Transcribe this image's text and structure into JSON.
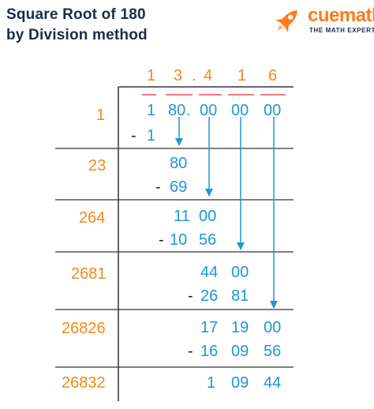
{
  "title": {
    "line1": "Square Root of 180",
    "line2": "by Division method"
  },
  "logo": {
    "brand": "cuemath",
    "tagline": "THE MATH EXPERT",
    "icon": "rocket-icon",
    "color": "#ff7a1a"
  },
  "colors": {
    "divisor": "#f08a17",
    "quotient": "#f08a17",
    "working": "#1d97d6",
    "subtraction_sign": "#222222",
    "bar_red": "#e8505b",
    "grid": "#333333"
  },
  "quotient": [
    "1",
    "3",
    ".",
    "4",
    "1",
    "6"
  ],
  "dividend": {
    "groups": [
      "1",
      "80",
      ".",
      "00",
      "00",
      "00"
    ]
  },
  "rows": [
    {
      "divisor": "1",
      "lines": [
        {
          "sign": "",
          "value": "1 80.00 00 00"
        },
        {
          "sign": "-",
          "value": "1"
        }
      ]
    },
    {
      "divisor": "23",
      "lines": [
        {
          "sign": "",
          "value": "80"
        },
        {
          "sign": "-",
          "value": "69"
        }
      ]
    },
    {
      "divisor": "264",
      "lines": [
        {
          "sign": "",
          "value": "11 00"
        },
        {
          "sign": "-",
          "value": "10 56"
        }
      ]
    },
    {
      "divisor": "2681",
      "lines": [
        {
          "sign": "",
          "value": "44 00"
        },
        {
          "sign": "-",
          "value": "26 81"
        }
      ]
    },
    {
      "divisor": "26826",
      "lines": [
        {
          "sign": "",
          "value": "17 19 00"
        },
        {
          "sign": "-",
          "value": "16 09 56"
        }
      ]
    },
    {
      "divisor": "26832",
      "lines": [
        {
          "sign": "",
          "value": "1 09 44"
        }
      ]
    }
  ],
  "cells": {
    "r0a": [
      "1",
      "80",
      ".",
      "00",
      "00",
      "00"
    ],
    "r0b": "1",
    "r1a": "80",
    "r1b": "69",
    "r2a": [
      "11",
      "00"
    ],
    "r2b": [
      "10",
      "56"
    ],
    "r3a": [
      "44",
      "00"
    ],
    "r3b": [
      "26",
      "81"
    ],
    "r4a": [
      "17",
      "19",
      "00"
    ],
    "r4b": [
      "16",
      "09",
      "56"
    ],
    "r5a": [
      "1",
      "09",
      "44"
    ],
    "minus": "-"
  }
}
